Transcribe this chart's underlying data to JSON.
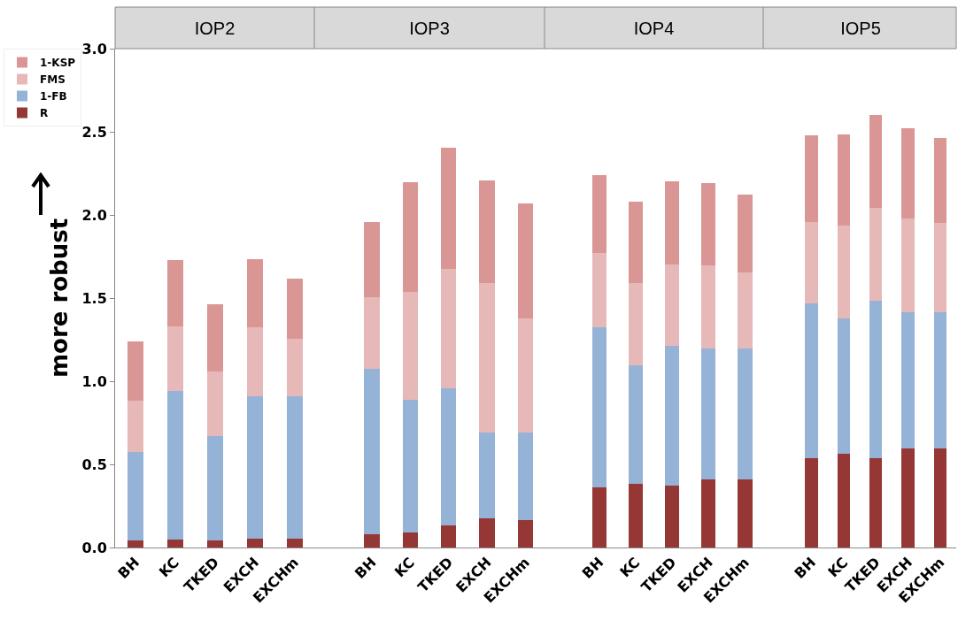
{
  "chart_data": [
    {
      "type": "bar",
      "title": "IOP2",
      "ylabel": "more robust",
      "stacked": true,
      "legend": "top left",
      "categories": [
        "BH",
        "KC",
        "TKED",
        "EXCH",
        "EXCHm"
      ],
      "ylim": [
        0,
        3
      ],
      "yticks": [
        {
          "value": 0,
          "label": "0.0"
        },
        {
          "value": 0.5,
          "label": "0.5"
        },
        {
          "value": 1,
          "label": "1.0"
        },
        {
          "value": 1.5,
          "label": "1.5"
        },
        {
          "value": 2,
          "label": "2.0"
        },
        {
          "value": 2.5,
          "label": "2.5"
        },
        {
          "value": 3,
          "label": "3.0"
        }
      ],
      "series": [
        {
          "name": "R",
          "color": "#953735",
          "values": [
            0.04,
            0.05,
            0.045,
            0.055,
            0.055
          ]
        },
        {
          "name": "1-FB",
          "color": "#95b3d7",
          "values": [
            0.535,
            0.89,
            0.625,
            0.855,
            0.855
          ]
        },
        {
          "name": "FMS",
          "color": "#e6b9b8",
          "values": [
            0.31,
            0.39,
            0.39,
            0.415,
            0.345
          ]
        },
        {
          "name": "1-KSP",
          "color": "#d99694",
          "values": [
            0.355,
            0.4,
            0.405,
            0.41,
            0.36
          ]
        }
      ]
    },
    {
      "type": "bar",
      "title": "IOP3",
      "stacked": true,
      "tick_labels": "x",
      "categories": [
        "BH",
        "KC",
        "TKED",
        "EXCH",
        "EXCHm"
      ],
      "ylim": [
        0,
        3
      ],
      "series": [
        {
          "color": "#953735",
          "values": [
            0.08,
            0.09,
            0.135,
            0.175,
            0.165
          ]
        },
        {
          "color": "#95b3d7",
          "values": [
            0.995,
            0.8,
            0.825,
            0.515,
            0.525
          ]
        },
        {
          "color": "#e6b9b8",
          "values": [
            0.43,
            0.645,
            0.715,
            0.9,
            0.69
          ]
        },
        {
          "color": "#d99694",
          "values": [
            0.45,
            0.66,
            0.73,
            0.62,
            0.69
          ]
        }
      ]
    },
    {
      "type": "bar",
      "title": "IOP4",
      "stacked": true,
      "tick_labels": "x",
      "categories": [
        "BH",
        "KC",
        "TKED",
        "EXCH",
        "EXCHm"
      ],
      "ylim": [
        0,
        3
      ],
      "series": [
        {
          "color": "#953735",
          "values": [
            0.36,
            0.385,
            0.375,
            0.41,
            0.41
          ]
        },
        {
          "color": "#95b3d7",
          "values": [
            0.965,
            0.71,
            0.84,
            0.785,
            0.785
          ]
        },
        {
          "color": "#e6b9b8",
          "values": [
            0.445,
            0.495,
            0.485,
            0.5,
            0.46
          ]
        },
        {
          "color": "#d99694",
          "values": [
            0.47,
            0.49,
            0.5,
            0.495,
            0.47
          ]
        }
      ]
    },
    {
      "type": "bar",
      "title": "IOP5",
      "stacked": true,
      "tick_labels": "x",
      "categories": [
        "BH",
        "KC",
        "TKED",
        "EXCH",
        "EXCHm"
      ],
      "ylim": [
        0,
        3
      ],
      "series": [
        {
          "color": "#953735",
          "values": [
            0.535,
            0.565,
            0.535,
            0.595,
            0.595
          ]
        },
        {
          "color": "#95b3d7",
          "values": [
            0.935,
            0.815,
            0.95,
            0.82,
            0.82
          ]
        },
        {
          "color": "#e6b9b8",
          "values": [
            0.49,
            0.555,
            0.555,
            0.565,
            0.535
          ]
        },
        {
          "color": "#d99694",
          "values": [
            0.52,
            0.55,
            0.56,
            0.54,
            0.515
          ]
        }
      ]
    }
  ]
}
